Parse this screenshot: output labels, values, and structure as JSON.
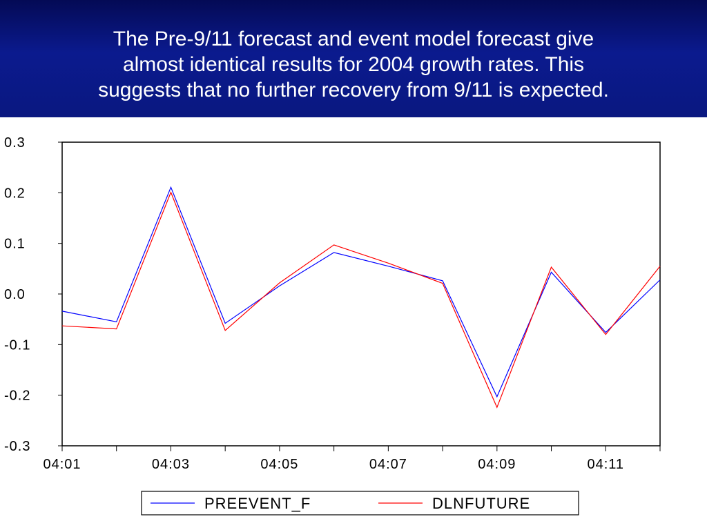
{
  "slide": {
    "title": "The Pre-9/11 forecast and event model forecast give\nalmost identical results for 2004 growth rates. This\nsuggests that no further recovery from 9/11 is expected."
  },
  "chart_data": {
    "type": "line",
    "x": [
      "04:01",
      "04:02",
      "04:03",
      "04:04",
      "04:05",
      "04:06",
      "04:07",
      "04:08",
      "04:09",
      "04:10",
      "04:11",
      "04:12"
    ],
    "x_tick_labels": [
      "04:01",
      "04:03",
      "04:05",
      "04:07",
      "04:09",
      "04:11"
    ],
    "y_tick_labels": [
      "0.3",
      "0.2",
      "0.1",
      "0.0",
      "-0.1",
      "-0.2",
      "-0.3"
    ],
    "ylim": [
      -0.3,
      0.3
    ],
    "grid": false,
    "legend_position": "bottom",
    "series": [
      {
        "name": "PREEVENT_F",
        "color": "#0000ff",
        "values": [
          -0.034,
          -0.055,
          0.211,
          -0.058,
          0.016,
          0.082,
          0.055,
          0.026,
          -0.203,
          0.043,
          -0.076,
          0.028
        ]
      },
      {
        "name": "DLNFUTURE",
        "color": "#ff0000",
        "values": [
          -0.063,
          -0.069,
          0.201,
          -0.072,
          0.022,
          0.097,
          0.061,
          0.021,
          -0.224,
          0.053,
          -0.08,
          0.055
        ]
      }
    ]
  }
}
